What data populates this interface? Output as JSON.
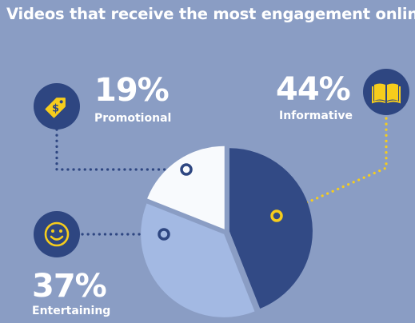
{
  "title": "Videos that receive the most engagement online:",
  "colors": {
    "background": "#8a9dc4",
    "informative": "#324a85",
    "entertaining": "#a3b9e3",
    "promotional": "#f8fafd",
    "accent_yellow": "#f6cd1c",
    "badge": "#2e4681",
    "connector_blue": "#2e4681"
  },
  "chart_data": {
    "type": "pie",
    "title": "Videos that receive the most engagement online:",
    "slices": [
      {
        "label": "Informative",
        "value": 44,
        "display": "44%",
        "color": "#324a85"
      },
      {
        "label": "Entertaining",
        "value": 37,
        "display": "37%",
        "color": "#a3b9e3"
      },
      {
        "label": "Promotional",
        "value": 19,
        "display": "19%",
        "color": "#f8fafd"
      }
    ],
    "start_angle_deg": 0,
    "direction": "clockwise",
    "legend": "none"
  },
  "callouts": {
    "promotional": {
      "percent": "19%",
      "label": "Promotional",
      "icon": "price-tag-icon"
    },
    "informative": {
      "percent": "44%",
      "label": "Informative",
      "icon": "open-book-icon"
    },
    "entertaining": {
      "percent": "37%",
      "label": "Entertaining",
      "icon": "smiley-face-icon"
    }
  }
}
